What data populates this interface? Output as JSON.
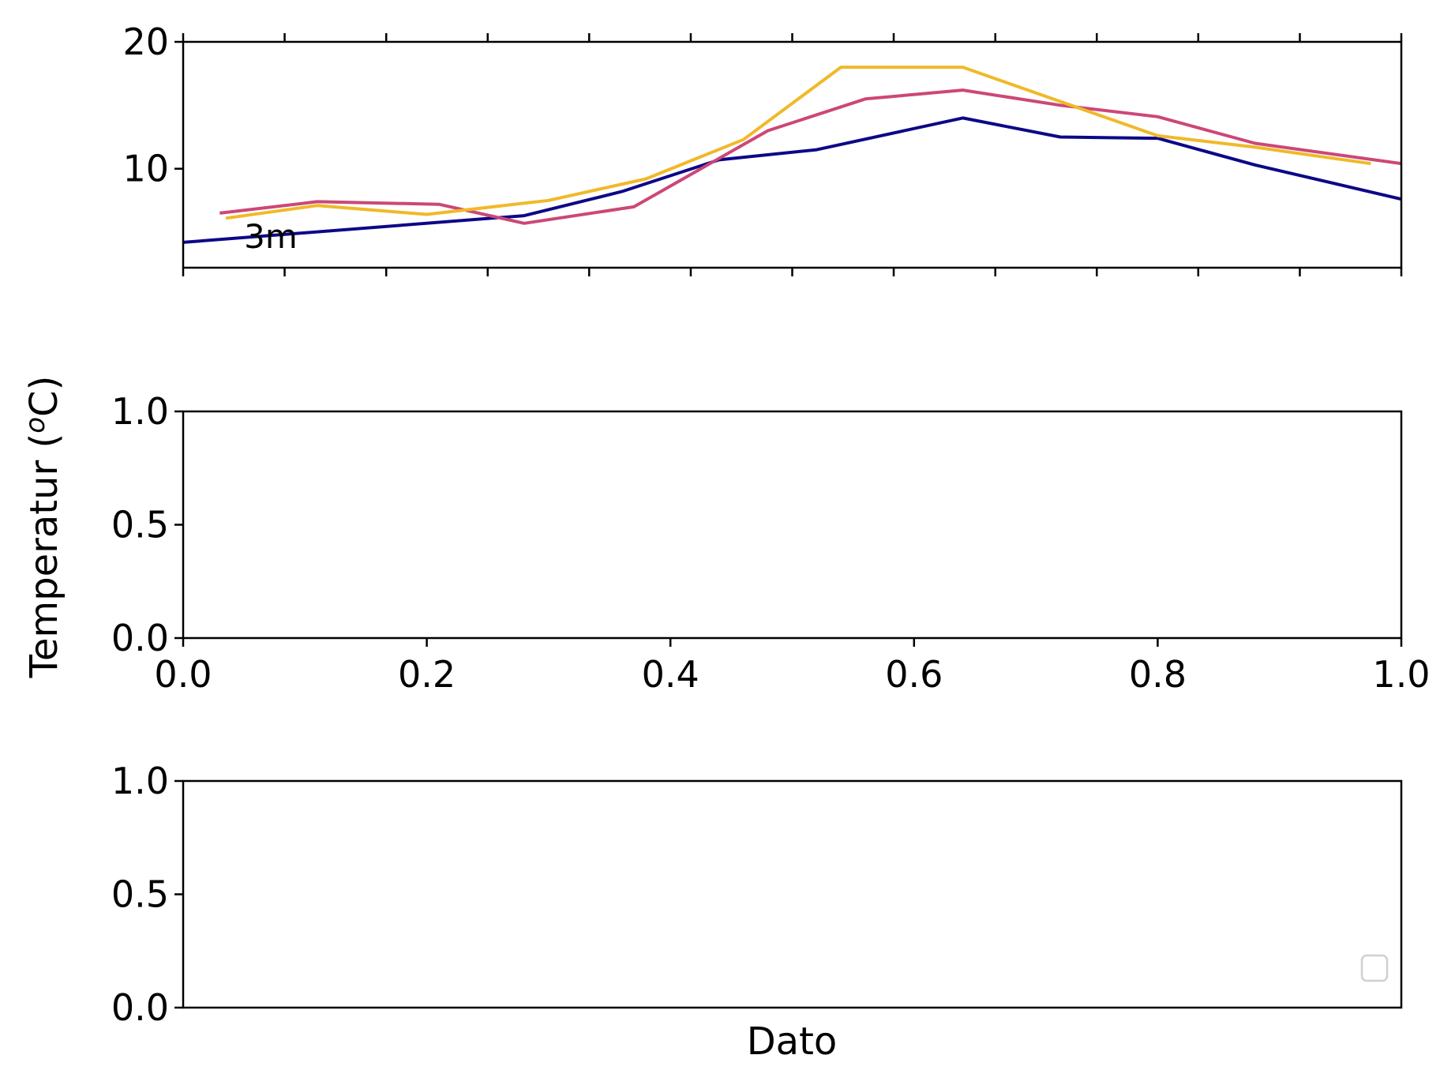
{
  "figure": {
    "ylabel": "Temperatur (",
    "ylabel_sup": "o",
    "ylabel_tail": "C)",
    "xlabel": "Dato"
  },
  "chart_data": [
    {
      "type": "line",
      "panel": "top",
      "xlim": [
        0,
        1
      ],
      "ylim": [
        2.2,
        20
      ],
      "yticks": [
        "10",
        "20"
      ],
      "ytick_values": [
        10,
        20
      ],
      "xtick_positions": [
        0,
        0.0833,
        0.1667,
        0.25,
        0.3333,
        0.4167,
        0.5,
        0.5833,
        0.6667,
        0.75,
        0.8333,
        0.9167,
        1.0
      ],
      "show_xtick_labels": false,
      "annotation": {
        "text": "3m",
        "x": 0.05,
        "y": 4.5
      },
      "series": [
        {
          "color": "#0d0887",
          "x": [
            0.0,
            0.28,
            0.36,
            0.44,
            0.52,
            0.64,
            0.72,
            0.8,
            0.88,
            1.0
          ],
          "y": [
            4.2,
            6.3,
            8.2,
            10.7,
            11.5,
            14.0,
            12.5,
            12.4,
            10.3,
            7.6
          ]
        },
        {
          "color": "#cc4778",
          "x": [
            0.03,
            0.11,
            0.21,
            0.28,
            0.37,
            0.48,
            0.56,
            0.64,
            0.72,
            0.8,
            0.88,
            1.0
          ],
          "y": [
            6.5,
            7.4,
            7.2,
            5.7,
            7.0,
            13.0,
            15.5,
            16.2,
            15.0,
            14.1,
            12.0,
            10.4
          ]
        },
        {
          "color": "#f0b929",
          "x": [
            0.035,
            0.11,
            0.2,
            0.3,
            0.38,
            0.46,
            0.54,
            0.64,
            0.72,
            0.8,
            0.88,
            0.975
          ],
          "y": [
            6.1,
            7.1,
            6.4,
            7.5,
            9.2,
            12.3,
            18.0,
            18.0,
            15.3,
            12.6,
            11.7,
            10.4
          ]
        }
      ]
    },
    {
      "type": "line",
      "panel": "middle",
      "xlim": [
        0,
        1
      ],
      "ylim": [
        0,
        1
      ],
      "yticks": [
        "0.0",
        "0.5",
        "1.0"
      ],
      "ytick_values": [
        0,
        0.5,
        1
      ],
      "xticks": [
        "0.0",
        "0.2",
        "0.4",
        "0.6",
        "0.8",
        "1.0"
      ],
      "xtick_values": [
        0,
        0.2,
        0.4,
        0.6,
        0.8,
        1.0
      ],
      "series": []
    },
    {
      "type": "line",
      "panel": "bottom",
      "xlim": [
        0,
        1
      ],
      "ylim": [
        0,
        1
      ],
      "yticks": [
        "0.0",
        "0.5",
        "1.0"
      ],
      "ytick_values": [
        0,
        0.5,
        1
      ],
      "legend": {
        "placement": "bottom-right",
        "entries": []
      },
      "series": []
    }
  ]
}
